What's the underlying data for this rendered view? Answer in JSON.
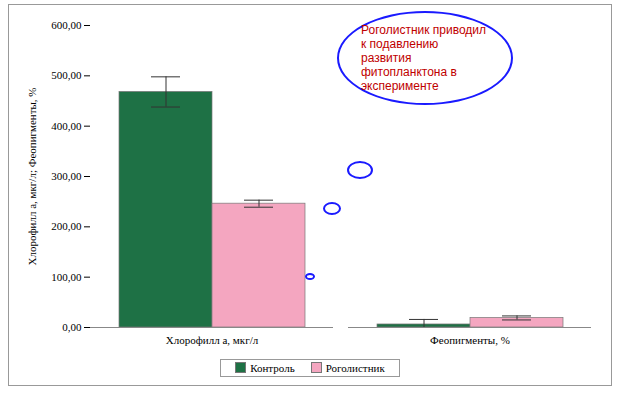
{
  "chart_data": {
    "type": "bar",
    "annotation": "Роголистник приводил к подавлению развития фитопланктона в эксперименте",
    "y_label": "Хлорофилл а, мкг/л; Феопигменты, %",
    "categories": [
      "Хлорофилл а, мкг/л",
      "Феопигменты, %"
    ],
    "series": [
      {
        "name": "Контроль",
        "color": "#1e7145",
        "values": [
          468,
          6
        ],
        "errors": [
          30,
          10
        ]
      },
      {
        "name": "Роголистник",
        "color": "#f4a6c0",
        "values": [
          246,
          19
        ],
        "errors": [
          7,
          4
        ]
      }
    ],
    "ylim": [
      0,
      600
    ],
    "yticks": [
      {
        "value": 0,
        "label": "0,00"
      },
      {
        "value": 100,
        "label": "100,00"
      },
      {
        "value": 200,
        "label": "200,00"
      },
      {
        "value": 300,
        "label": "300,00"
      },
      {
        "value": 400,
        "label": "400,00"
      },
      {
        "value": 500,
        "label": "500,00"
      },
      {
        "value": 600,
        "label": "600,00"
      }
    ],
    "grid": false,
    "legend": "bottom"
  }
}
